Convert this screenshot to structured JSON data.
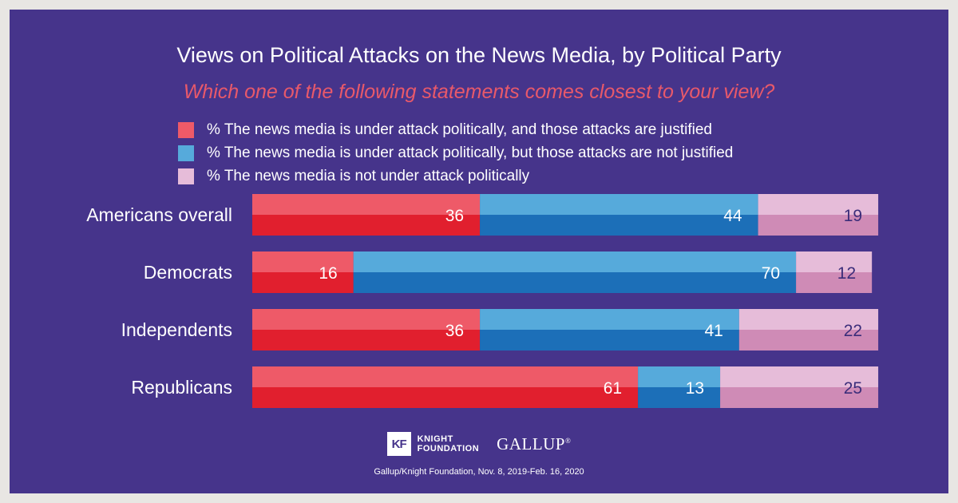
{
  "chart_data": {
    "type": "bar",
    "orientation": "horizontal",
    "stacked": true,
    "title": "Views on Political Attacks on the News Media, by Political Party",
    "subtitle": "Which one of the following statements comes closest to your view?",
    "categories": [
      "Americans overall",
      "Democrats",
      "Independents",
      "Republicans"
    ],
    "series": [
      {
        "name": "% The news media is under attack politically, and those attacks are justified",
        "values": [
          36,
          16,
          36,
          61
        ],
        "color_light": "#ee5a68",
        "color_dark": "#e11f2e"
      },
      {
        "name": "% The news media is under attack politically, but those attacks are not justified",
        "values": [
          44,
          70,
          41,
          13
        ],
        "color_light": "#56aadb",
        "color_dark": "#1c6fb8"
      },
      {
        "name": "% The news media is not under attack politically",
        "values": [
          19,
          12,
          22,
          25
        ],
        "color_light": "#e6bcd9",
        "color_dark": "#cf8bb6"
      }
    ],
    "xlim": [
      0,
      100
    ],
    "grid": false,
    "legend_position": "top"
  },
  "footer": {
    "knight_mark": "KF",
    "knight_line1": "KNIGHT",
    "knight_line2": "FOUNDATION",
    "gallup": "GALLUP",
    "gallup_mark": "®",
    "source": "Gallup/Knight Foundation, Nov. 8, 2019-Feb. 16, 2020"
  },
  "colors": {
    "background": "#46348b",
    "outer": "#e8e6e3",
    "subtitle": "#e8596a",
    "text": "#ffffff",
    "label_on_light": "#3b2d7a"
  }
}
